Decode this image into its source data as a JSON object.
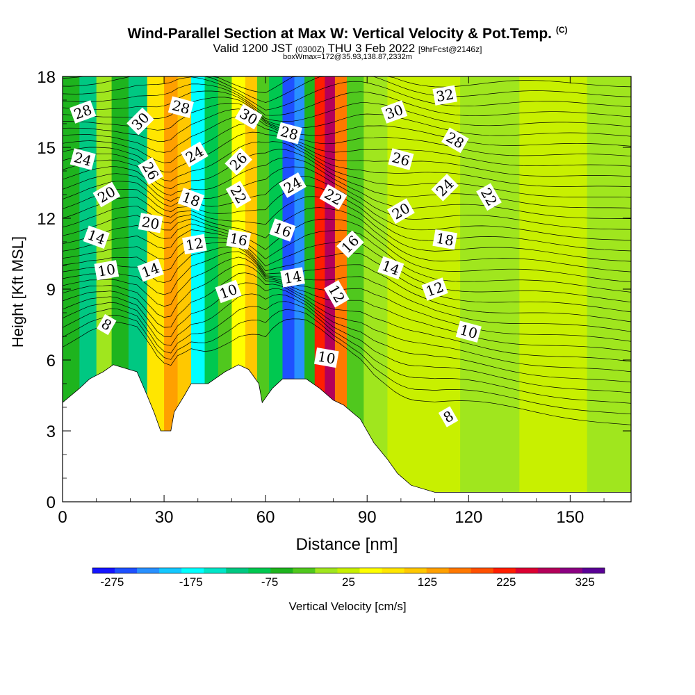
{
  "title": {
    "main": "Wind-Parallel Section at Max W: Vertical Velocity & Pot.Temp.",
    "copyright": "(C)",
    "valid_prefix": "Valid 1200 JST",
    "valid_z": "(0300Z)",
    "valid_date": "THU 3 Feb 2022",
    "forecast": "[9hrFcst@2146z]",
    "box": "boxWmax=172@35.93,138.87,2332m"
  },
  "chart_data": {
    "type": "heatmap",
    "xlabel": "Distance [nm]",
    "ylabel": "Height [Kft MSL]",
    "xlim": [
      0,
      168
    ],
    "ylim": [
      0,
      18
    ],
    "x_ticks": [
      0,
      30,
      60,
      90,
      120,
      150
    ],
    "y_ticks": [
      0,
      3,
      6,
      9,
      12,
      15,
      18
    ],
    "colorbar": {
      "label": "Vertical Velocity [cm/s]",
      "tick_labels": [
        "-275",
        "-175",
        "-75",
        "25",
        "125",
        "225",
        "325"
      ],
      "colors": [
        "#1414ff",
        "#1e50ff",
        "#2890ff",
        "#14c8ff",
        "#00ffff",
        "#00e6c8",
        "#00c882",
        "#00c850",
        "#1eb41e",
        "#50c81e",
        "#a0e61e",
        "#c8f000",
        "#ffff00",
        "#ffe600",
        "#ffc800",
        "#ffa000",
        "#ff7800",
        "#ff5000",
        "#ff1e00",
        "#dc0032",
        "#b4005a",
        "#8c0082",
        "#5a0096"
      ]
    },
    "terrain": [
      [
        0,
        4.2
      ],
      [
        5,
        4.8
      ],
      [
        8,
        5.2
      ],
      [
        12,
        5.5
      ],
      [
        15,
        5.8
      ],
      [
        22,
        5.5
      ],
      [
        25,
        4.5
      ],
      [
        27,
        3.8
      ],
      [
        29,
        3.0
      ],
      [
        32,
        3.0
      ],
      [
        33,
        3.8
      ],
      [
        36,
        4.5
      ],
      [
        38,
        5.0
      ],
      [
        43,
        5.0
      ],
      [
        48,
        5.5
      ],
      [
        52,
        5.8
      ],
      [
        55,
        5.6
      ],
      [
        58,
        5.0
      ],
      [
        59,
        4.2
      ],
      [
        62,
        4.8
      ],
      [
        65,
        5.2
      ],
      [
        72,
        5.2
      ],
      [
        76,
        4.8
      ],
      [
        80,
        4.3
      ],
      [
        83,
        4.1
      ],
      [
        88,
        3.5
      ],
      [
        92,
        2.5
      ],
      [
        96,
        1.8
      ],
      [
        99,
        1.2
      ],
      [
        103,
        0.7
      ],
      [
        110,
        0.4
      ],
      [
        168,
        0.4
      ]
    ],
    "velocity_bands": [
      {
        "x": 2,
        "value": -50
      },
      {
        "x": 8,
        "value": -120
      },
      {
        "x": 12,
        "value": 10
      },
      {
        "x": 17,
        "value": -70
      },
      {
        "x": 22,
        "value": -110
      },
      {
        "x": 28,
        "value": 80
      },
      {
        "x": 32,
        "value": 150
      },
      {
        "x": 36,
        "value": 110
      },
      {
        "x": 40,
        "value": -170
      },
      {
        "x": 44,
        "value": -90
      },
      {
        "x": 48,
        "value": -30
      },
      {
        "x": 52,
        "value": 60
      },
      {
        "x": 56,
        "value": 110
      },
      {
        "x": 59,
        "value": -40
      },
      {
        "x": 63,
        "value": -100
      },
      {
        "x": 67,
        "value": -270
      },
      {
        "x": 70,
        "value": -220
      },
      {
        "x": 73,
        "value": -60
      },
      {
        "x": 76,
        "value": 210
      },
      {
        "x": 79,
        "value": 290
      },
      {
        "x": 82,
        "value": 160
      },
      {
        "x": 86,
        "value": -40
      },
      {
        "x": 92,
        "value": 0
      },
      {
        "x": 100,
        "value": 30
      },
      {
        "x": 110,
        "value": 20
      },
      {
        "x": 125,
        "value": 10
      },
      {
        "x": 145,
        "value": 15
      },
      {
        "x": 165,
        "value": 10
      }
    ],
    "theta_contour_labels": [
      {
        "text": "28",
        "x": 6,
        "y": 16.5
      },
      {
        "text": "24",
        "x": 6,
        "y": 14.5
      },
      {
        "text": "20",
        "x": 13,
        "y": 13.0
      },
      {
        "text": "14",
        "x": 10,
        "y": 11.2
      },
      {
        "text": "10",
        "x": 13,
        "y": 9.8
      },
      {
        "text": "8",
        "x": 13,
        "y": 7.5
      },
      {
        "text": "30",
        "x": 23,
        "y": 16.1
      },
      {
        "text": "26",
        "x": 26,
        "y": 14.0
      },
      {
        "text": "20",
        "x": 26,
        "y": 11.8
      },
      {
        "text": "14",
        "x": 26,
        "y": 9.8
      },
      {
        "text": "28",
        "x": 35,
        "y": 16.7
      },
      {
        "text": "24",
        "x": 39,
        "y": 14.7
      },
      {
        "text": "18",
        "x": 38,
        "y": 12.8
      },
      {
        "text": "12",
        "x": 39,
        "y": 10.9
      },
      {
        "text": "30",
        "x": 55,
        "y": 16.3
      },
      {
        "text": "26",
        "x": 52,
        "y": 14.4
      },
      {
        "text": "22",
        "x": 52,
        "y": 13.0
      },
      {
        "text": "16",
        "x": 52,
        "y": 11.1
      },
      {
        "text": "10",
        "x": 49,
        "y": 8.9
      },
      {
        "text": "28",
        "x": 67,
        "y": 15.6
      },
      {
        "text": "24",
        "x": 68,
        "y": 13.4
      },
      {
        "text": "16",
        "x": 65,
        "y": 11.5
      },
      {
        "text": "14",
        "x": 68,
        "y": 9.5
      },
      {
        "text": "22",
        "x": 80,
        "y": 12.9
      },
      {
        "text": "16",
        "x": 85,
        "y": 10.9
      },
      {
        "text": "12",
        "x": 81,
        "y": 8.8
      },
      {
        "text": "10",
        "x": 78,
        "y": 6.1
      },
      {
        "text": "30",
        "x": 98,
        "y": 16.5
      },
      {
        "text": "26",
        "x": 100,
        "y": 14.5
      },
      {
        "text": "20",
        "x": 100,
        "y": 12.3
      },
      {
        "text": "14",
        "x": 97,
        "y": 9.9
      },
      {
        "text": "32",
        "x": 113,
        "y": 17.2
      },
      {
        "text": "28",
        "x": 116,
        "y": 15.3
      },
      {
        "text": "24",
        "x": 113,
        "y": 13.3
      },
      {
        "text": "22",
        "x": 126,
        "y": 12.9
      },
      {
        "text": "18",
        "x": 113,
        "y": 11.1
      },
      {
        "text": "12",
        "x": 110,
        "y": 9.0
      },
      {
        "text": "10",
        "x": 120,
        "y": 7.2
      },
      {
        "text": "8",
        "x": 114,
        "y": 3.6
      }
    ]
  }
}
